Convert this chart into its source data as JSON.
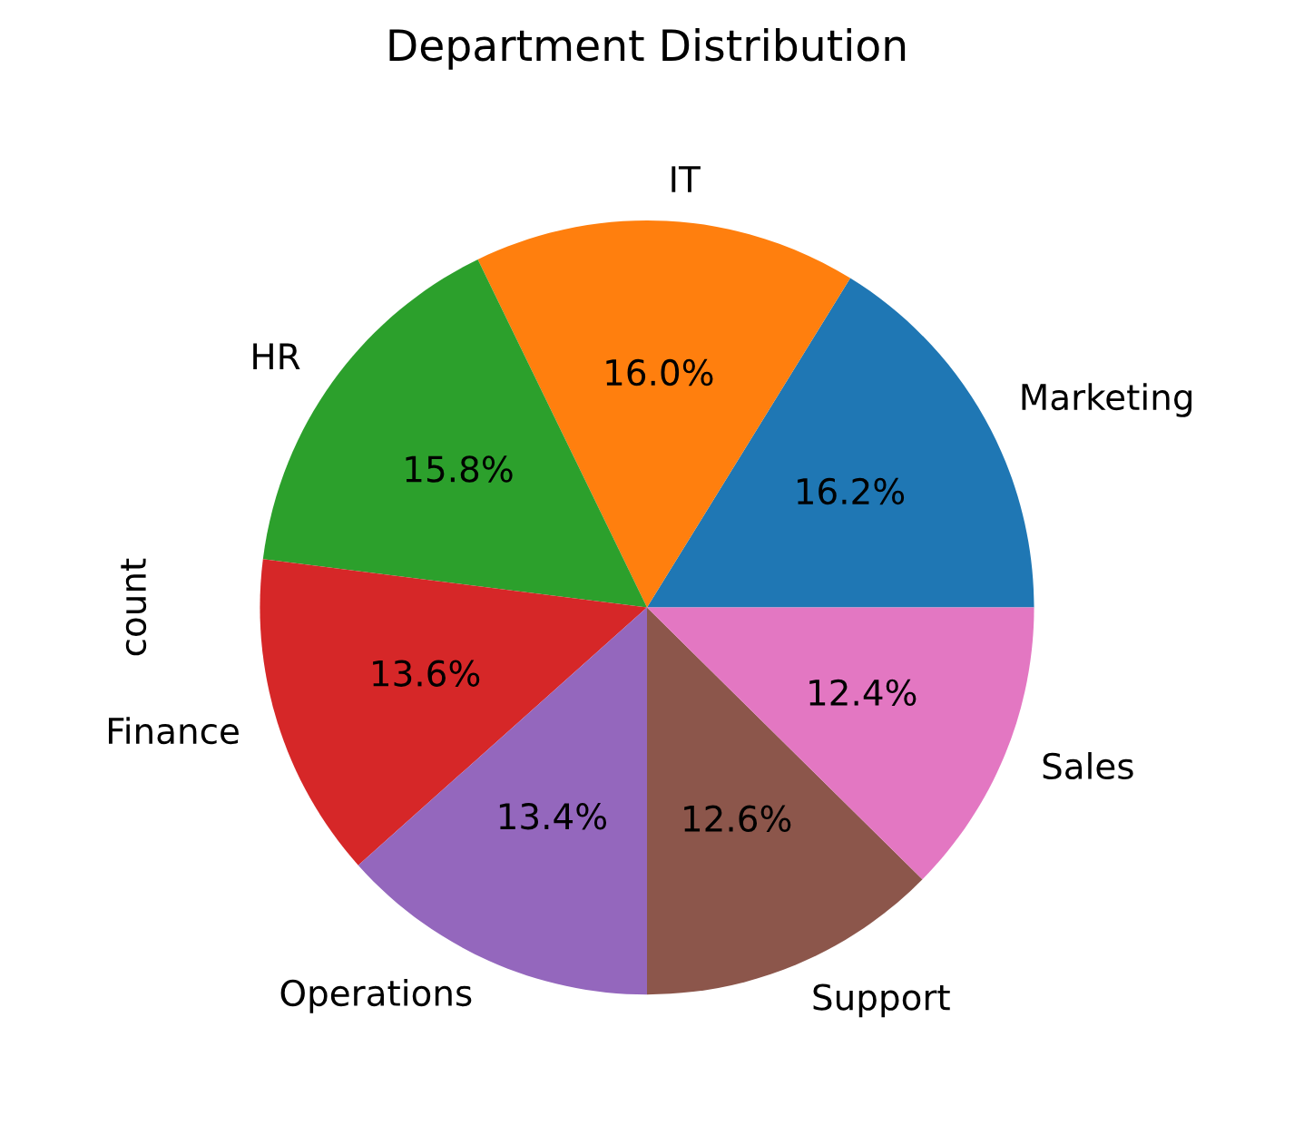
{
  "chart_data": {
    "type": "pie",
    "title": "Department Distribution",
    "ylabel": "count",
    "categories": [
      "Marketing",
      "IT",
      "HR",
      "Finance",
      "Operations",
      "Support",
      "Sales"
    ],
    "values": [
      16.2,
      16.0,
      15.8,
      13.6,
      13.4,
      12.6,
      12.4
    ],
    "colors": [
      "#1f77b4",
      "#ff7f0e",
      "#2ca02c",
      "#d62728",
      "#9467bd",
      "#8c564b",
      "#e377c2"
    ],
    "value_labels": [
      "16.2%",
      "16.0%",
      "15.8%",
      "13.6%",
      "13.4%",
      "12.6%",
      "12.4%"
    ]
  }
}
